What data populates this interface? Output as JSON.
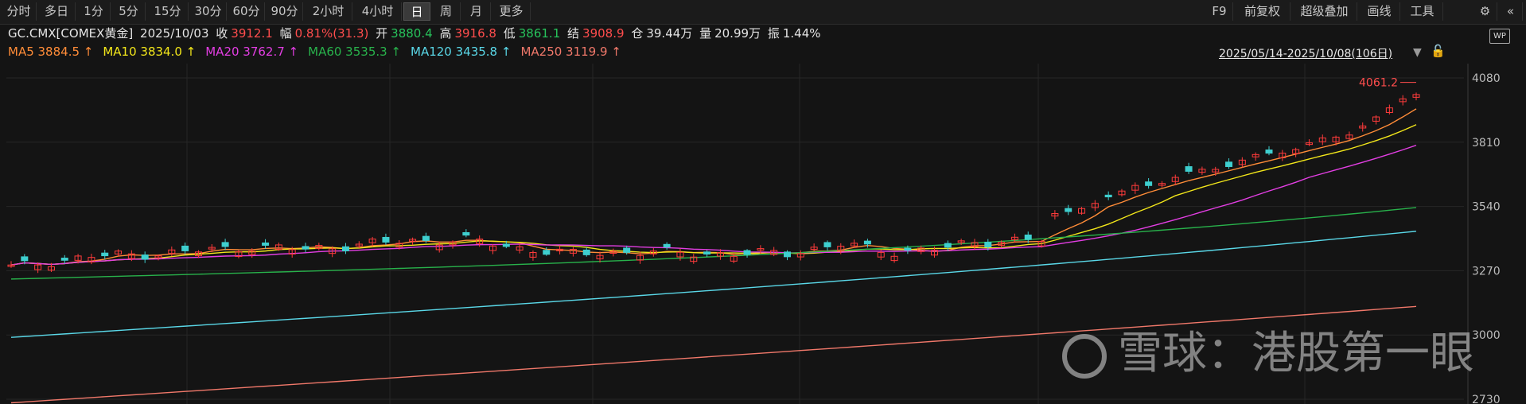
{
  "toolbar": {
    "periods": [
      "分时",
      "多日",
      "1分",
      "5分",
      "15分",
      "30分",
      "60分",
      "90分",
      "2小时",
      "4小时",
      "日",
      "周",
      "月",
      "更多"
    ],
    "active_period": "日",
    "right_items": [
      "F9",
      "前复权",
      "超级叠加",
      "画线",
      "工具"
    ]
  },
  "quote": {
    "symbol": "GC.CMX[COMEX黄金]",
    "date": "2025/10/03",
    "close_label": "收",
    "close": "3912.1",
    "change_label": "幅",
    "change": "0.81%(31.3)",
    "open_label": "开",
    "open": "3880.4",
    "high_label": "高",
    "high": "3916.8",
    "low_label": "低",
    "low": "3861.1",
    "settle_label": "结",
    "settle": "3908.9",
    "oi_label": "仓",
    "oi": "39.44万",
    "volume_label": "量",
    "volume": "20.99万",
    "amplitude_label": "振",
    "amplitude": "1.44%"
  },
  "ma_legend": [
    {
      "name": "MA5",
      "value": "3884.5",
      "arrow": "↑",
      "color": "#ff8c38"
    },
    {
      "name": "MA10",
      "value": "3834.0",
      "arrow": "↑",
      "color": "#f2e61a"
    },
    {
      "name": "MA20",
      "value": "3762.7",
      "arrow": "↑",
      "color": "#e33ee3"
    },
    {
      "name": "MA60",
      "value": "3535.3",
      "arrow": "↑",
      "color": "#28b24b"
    },
    {
      "name": "MA120",
      "value": "3435.8",
      "arrow": "↑",
      "color": "#5ad8e8"
    },
    {
      "name": "MA250",
      "value": "3119.9",
      "arrow": "↑",
      "color": "#f0786a"
    }
  ],
  "date_range": "2025/05/14-2025/10/08(106日)",
  "watermark_text": "雪球：港股第一眼",
  "colors": {
    "up": "#ff3b3b",
    "down": "#3ecfcf",
    "background": "#141414",
    "grid": "#262626"
  },
  "chart_data": {
    "type": "candlestick",
    "y_ticks": [
      4080,
      3810,
      3540,
      3270,
      3000,
      2730
    ],
    "ylim": [
      2710,
      4140
    ],
    "peak_label": "4061.2",
    "grid": true,
    "candles_count": 106,
    "ma_end_values": {
      "MA5": 3884.5,
      "MA10": 3834.0,
      "MA20": 3762.7,
      "MA60": 3535.3,
      "MA120": 3435.8,
      "MA250": 3119.9
    }
  }
}
